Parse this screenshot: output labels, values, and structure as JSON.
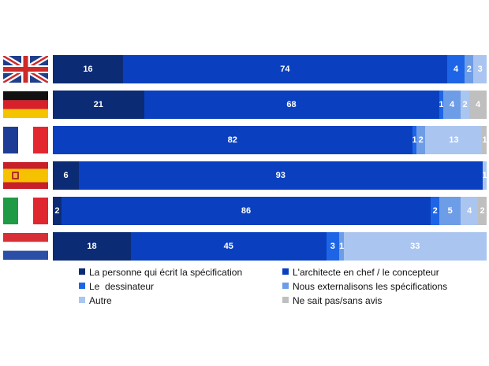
{
  "chart_data": {
    "type": "bar",
    "orientation": "horizontal",
    "stacked": true,
    "normalized_percent": true,
    "title": "",
    "xlabel": "",
    "ylabel": "",
    "categories": [
      "uk-flag",
      "germany-flag",
      "france-flag",
      "spain-flag",
      "italy-flag",
      "netherlands-flag"
    ],
    "series": [
      {
        "name": "La personne qui écrit la spécification",
        "color": "#0b2b74",
        "values": [
          16,
          21,
          0,
          6,
          2,
          18
        ]
      },
      {
        "name": "L'architecte en chef / le concepteur",
        "color": "#0a40bf",
        "values": [
          74,
          68,
          82,
          93,
          86,
          45
        ]
      },
      {
        "name": "Le  dessinateur",
        "color": "#1d65e6",
        "values": [
          4,
          1,
          1,
          0,
          2,
          3
        ]
      },
      {
        "name": "Nous externalisons les spécifications",
        "color": "#6e9de8",
        "values": [
          2,
          4,
          2,
          0,
          5,
          1
        ]
      },
      {
        "name": "Autre",
        "color": "#aac5f0",
        "values": [
          3,
          2,
          13,
          1,
          4,
          33
        ]
      },
      {
        "name": "Ne sait pas/sans avis",
        "color": "#bfbfbf",
        "values": [
          0,
          4,
          1,
          0,
          2,
          0
        ]
      }
    ],
    "value_labels": [
      [
        "16",
        "74",
        "4",
        "2",
        "3",
        ""
      ],
      [
        "21",
        "68",
        "1",
        "4",
        "2",
        "4"
      ],
      [
        "",
        "82",
        "1",
        "2",
        "13",
        "1"
      ],
      [
        "6",
        "93",
        "",
        "",
        "1",
        ""
      ],
      [
        "2",
        "86",
        "2",
        "5",
        "4",
        "2"
      ],
      [
        "18",
        "45",
        "3",
        "1",
        "33",
        ""
      ]
    ],
    "legend": {
      "placement": "bottom",
      "columns": 2,
      "entries": [
        "La personne qui écrit la spécification",
        "L'architecte en chef / le concepteur",
        "Le  dessinateur",
        "Nous externalisons les spécifications",
        "Autre",
        "Ne sait pas/sans avis"
      ]
    },
    "grid": false
  }
}
